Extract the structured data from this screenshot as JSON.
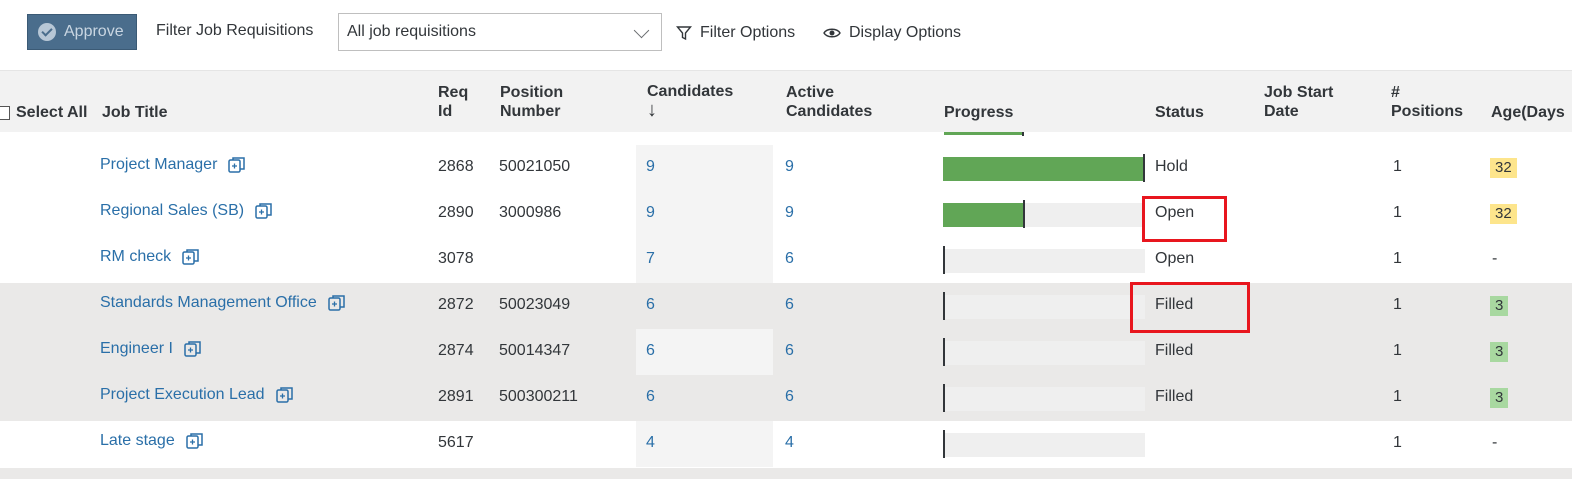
{
  "toolbar": {
    "approve_label": "Approve",
    "filter_label": "Filter Job Requisitions",
    "filter_value": "All job requisitions",
    "filter_options_label": "Filter Options",
    "display_options_label": "Display Options"
  },
  "columns": {
    "select_all": "Select All",
    "job_title": "Job Title",
    "req_id_1": "Req",
    "req_id_2": "Id",
    "position_1": "Position",
    "position_2": "Number",
    "candidates": "Candidates",
    "sort_arrow": "↓",
    "active_1": "Active",
    "active_2": "Candidates",
    "progress": "Progress",
    "status": "Status",
    "start_1": "Job Start",
    "start_2": "Date",
    "positions_1": "#",
    "positions_2": "Positions",
    "age": "Age(Days"
  },
  "rows": [
    {
      "title": "Project Manager",
      "req_id": "2868",
      "position": "50021050",
      "candidates": "9",
      "active": "9",
      "progress": 1.0,
      "status": "Hold",
      "positions": "1",
      "age": "32",
      "age_color": "#fde58c"
    },
    {
      "title": "Regional Sales (SB)",
      "req_id": "2890",
      "position": "3000986",
      "candidates": "9",
      "active": "9",
      "progress": 0.4,
      "status": "Open",
      "positions": "1",
      "age": "32",
      "age_color": "#fde58c"
    },
    {
      "title": "RM check",
      "req_id": "3078",
      "position": "",
      "candidates": "7",
      "active": "6",
      "progress": 0,
      "status": "Open",
      "positions": "1",
      "age": "-",
      "age_color": ""
    },
    {
      "title": "Standards Management Office",
      "req_id": "2872",
      "position": "50023049",
      "candidates": "6",
      "active": "6",
      "progress": 0,
      "status": "Filled",
      "positions": "1",
      "age": "3",
      "age_color": "#a8d8a0"
    },
    {
      "title": "Engineer I",
      "req_id": "2874",
      "position": "50014347",
      "candidates": "6",
      "active": "6",
      "progress": 0,
      "status": "Filled",
      "positions": "1",
      "age": "3",
      "age_color": "#a8d8a0"
    },
    {
      "title": "Project Execution Lead",
      "req_id": "2891",
      "position": "500300211",
      "candidates": "6",
      "active": "6",
      "progress": 0,
      "status": "Filled",
      "positions": "1",
      "age": "3",
      "age_color": "#a8d8a0"
    },
    {
      "title": "Late stage",
      "req_id": "5617",
      "position": "",
      "candidates": "4",
      "active": "4",
      "progress": 0,
      "status": "",
      "positions": "1",
      "age": "-",
      "age_color": ""
    }
  ],
  "colors": {
    "link": "#2a6fa8",
    "progress_fill": "#61a656",
    "highlight": "#e8161e"
  }
}
